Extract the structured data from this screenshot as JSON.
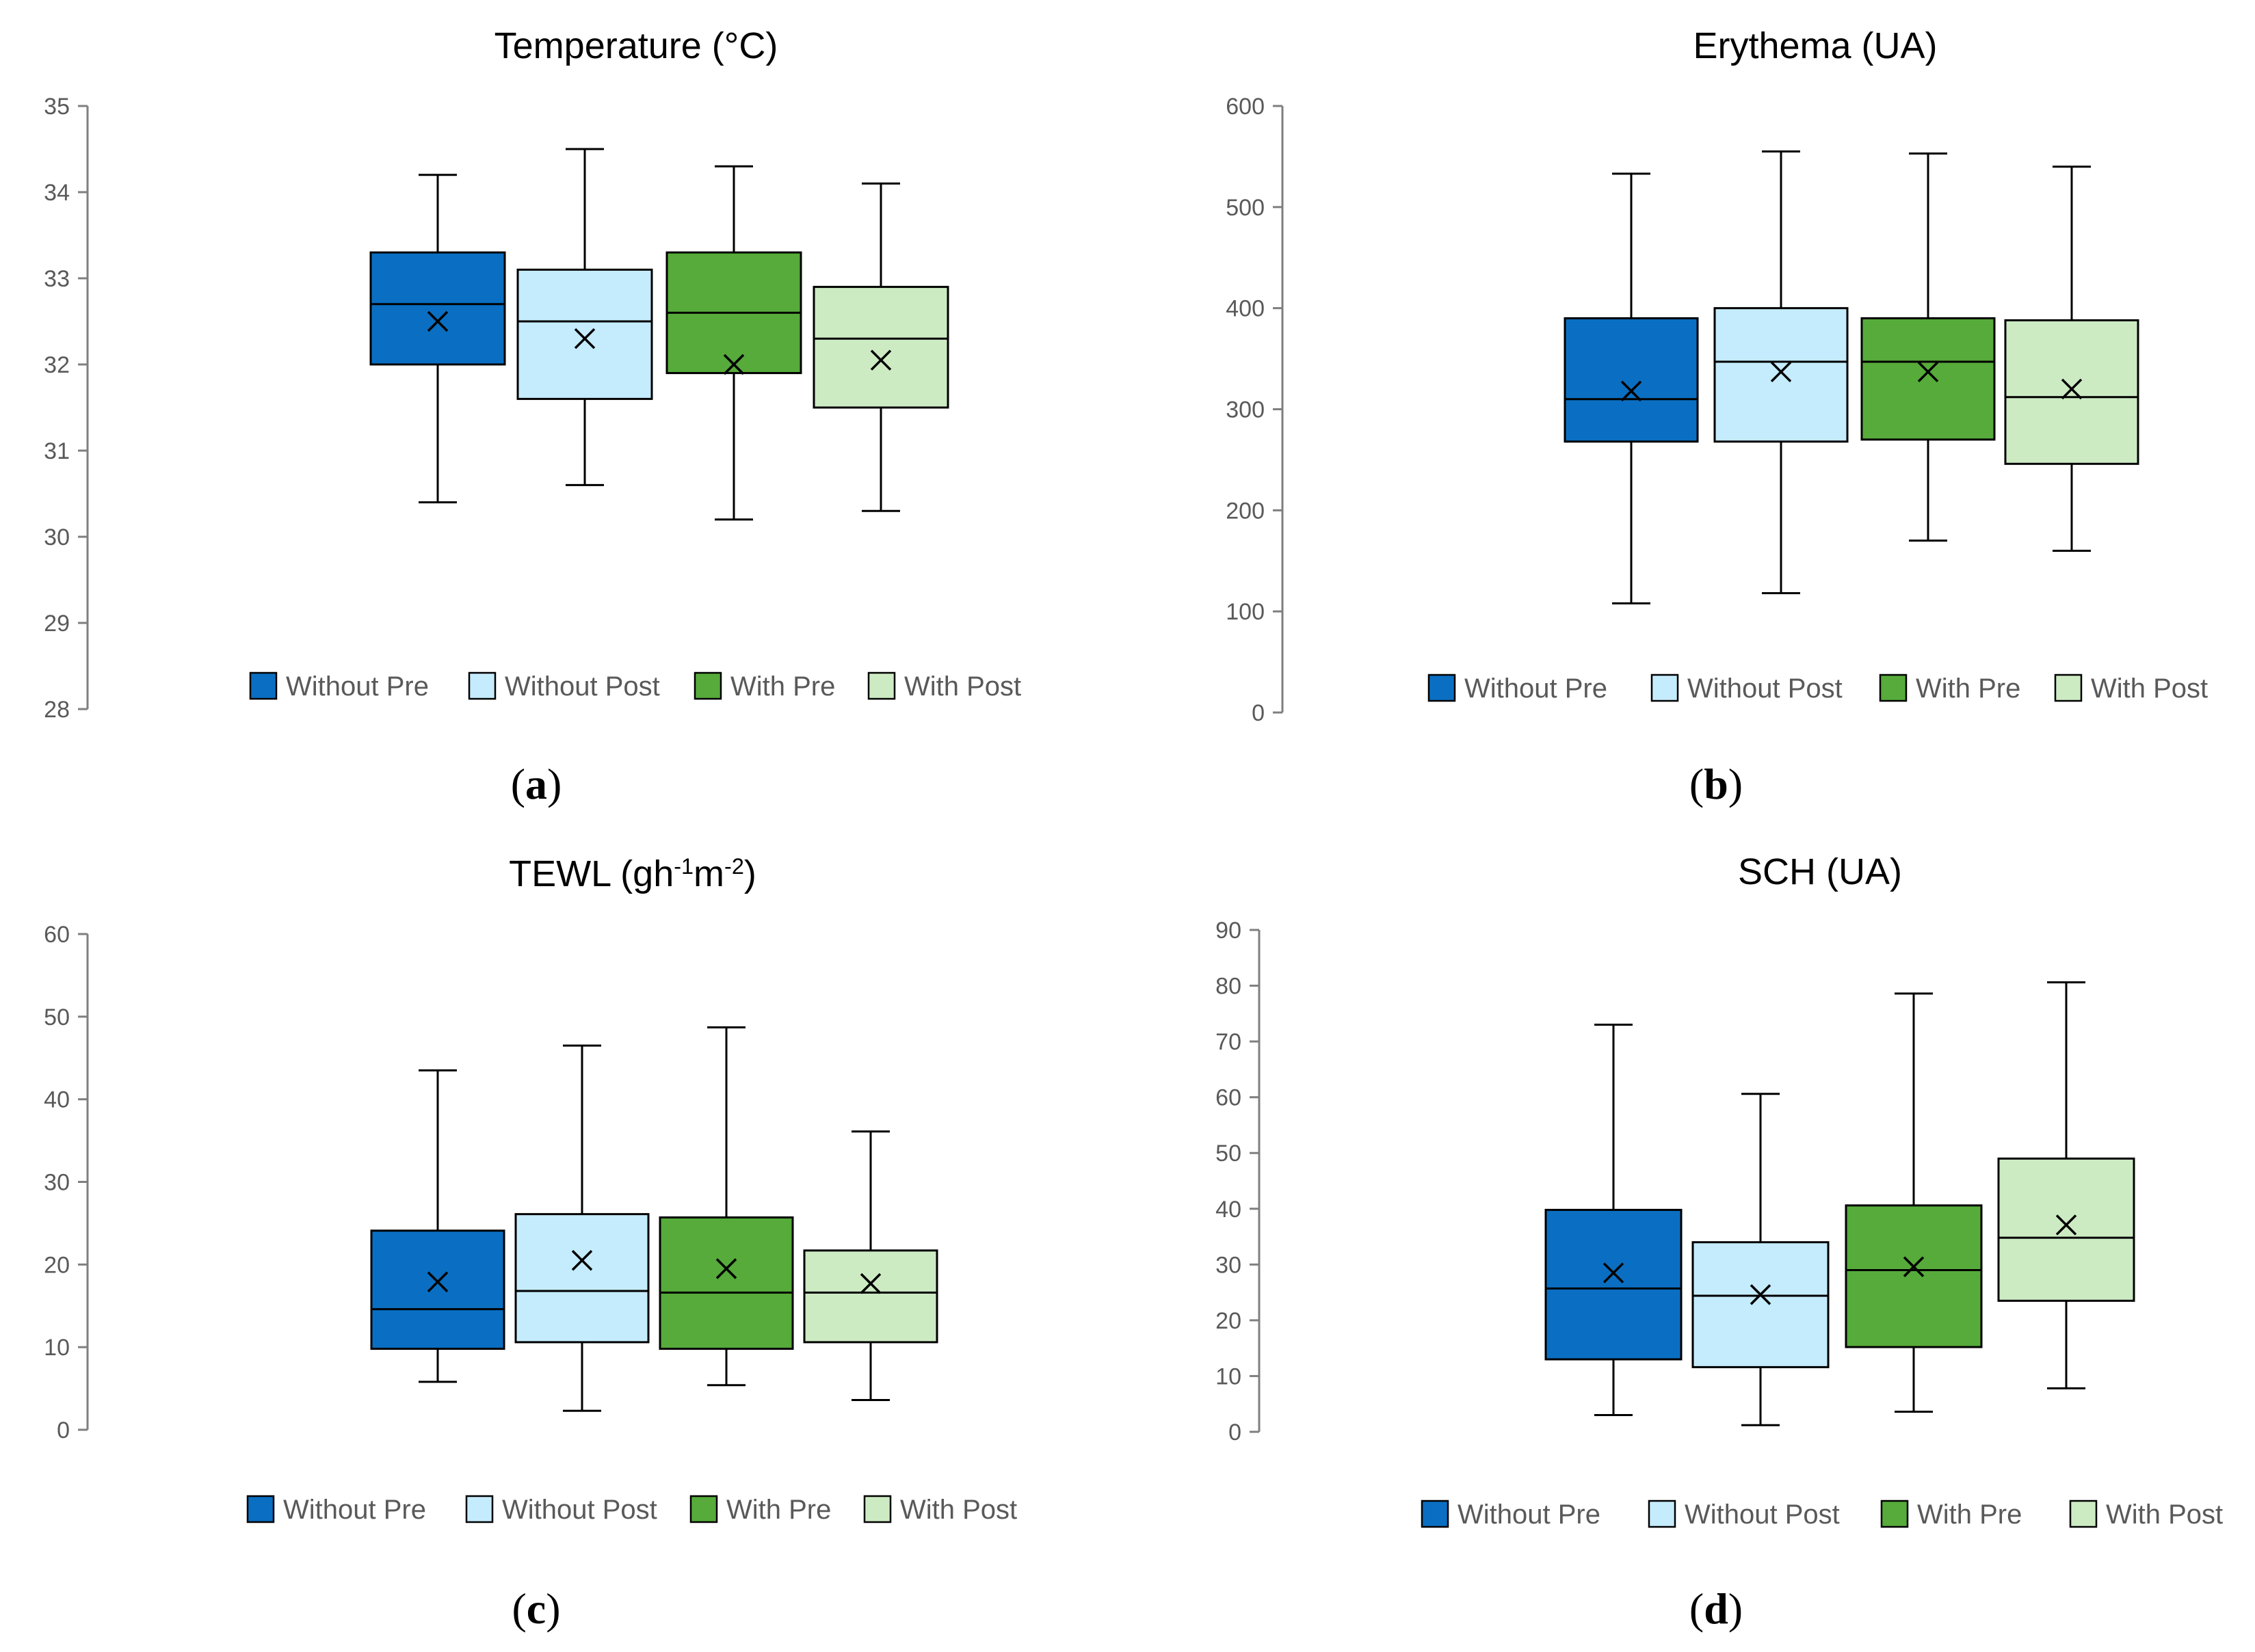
{
  "chart_data": [
    {
      "type": "box",
      "title": "Temperature (°C)",
      "title_parts": [
        {
          "t": "Temperature (°C)"
        }
      ],
      "caption_open": "(",
      "caption_letter": "a",
      "caption_close": ")",
      "ylim": [
        28,
        35
      ],
      "yticks": [
        28,
        29,
        30,
        31,
        32,
        33,
        34,
        35
      ],
      "grid": false,
      "legend_position": "bottom",
      "series": [
        {
          "name": "Without Pre",
          "color": "#0a6fc2",
          "min": 30.4,
          "q1": 32.0,
          "median": 32.7,
          "q3": 33.3,
          "max": 34.2,
          "mean": 32.5
        },
        {
          "name": "Without Post",
          "color": "#c5ecfd",
          "min": 30.6,
          "q1": 31.6,
          "median": 32.5,
          "q3": 33.1,
          "max": 34.5,
          "mean": 32.3
        },
        {
          "name": "With Pre",
          "color": "#56ab3a",
          "min": 30.2,
          "q1": 31.9,
          "median": 32.6,
          "q3": 33.3,
          "max": 34.3,
          "mean": 32.0
        },
        {
          "name": "With Post",
          "color": "#cdebc3",
          "min": 30.3,
          "q1": 31.5,
          "median": 32.3,
          "q3": 32.9,
          "max": 34.1,
          "mean": 32.05
        }
      ]
    },
    {
      "type": "box",
      "title": "Erythema (UA)",
      "title_parts": [
        {
          "t": "Erythema (UA)"
        }
      ],
      "caption_open": "(",
      "caption_letter": "b",
      "caption_close": ")",
      "ylim": [
        0,
        600
      ],
      "yticks": [
        0,
        100,
        200,
        300,
        400,
        500,
        600
      ],
      "grid": false,
      "legend_position": "bottom",
      "series": [
        {
          "name": "Without Pre",
          "color": "#0a6fc2",
          "min": 108,
          "q1": 268,
          "median": 310,
          "q3": 390,
          "max": 533,
          "mean": 318
        },
        {
          "name": "Without Post",
          "color": "#c5ecfd",
          "min": 118,
          "q1": 268,
          "median": 347,
          "q3": 400,
          "max": 555,
          "mean": 337
        },
        {
          "name": "With Pre",
          "color": "#56ab3a",
          "min": 170,
          "q1": 270,
          "median": 347,
          "q3": 390,
          "max": 553,
          "mean": 337
        },
        {
          "name": "With Post",
          "color": "#cdebc3",
          "min": 160,
          "q1": 246,
          "median": 312,
          "q3": 388,
          "max": 540,
          "mean": 320
        }
      ]
    },
    {
      "type": "box",
      "title": "TEWL (gh-1m-2)",
      "title_parts": [
        {
          "t": "TEWL (gh"
        },
        {
          "t": "-1",
          "sup": true
        },
        {
          "t": "m"
        },
        {
          "t": "-2",
          "sup": true
        },
        {
          "t": ")"
        }
      ],
      "caption_open": "(",
      "caption_letter": "c",
      "caption_close": ")",
      "ylim": [
        0,
        60
      ],
      "yticks": [
        0,
        10,
        20,
        30,
        40,
        50,
        60
      ],
      "grid": false,
      "legend_position": "bottom",
      "series": [
        {
          "name": "Without Pre",
          "color": "#0a6fc2",
          "min": 5.8,
          "q1": 9.8,
          "median": 14.6,
          "q3": 24.1,
          "max": 43.5,
          "mean": 17.9
        },
        {
          "name": "Without Post",
          "color": "#c5ecfd",
          "min": 2.3,
          "q1": 10.6,
          "median": 16.8,
          "q3": 26.1,
          "max": 46.5,
          "mean": 20.5
        },
        {
          "name": "With Pre",
          "color": "#56ab3a",
          "min": 5.4,
          "q1": 9.8,
          "median": 16.6,
          "q3": 25.7,
          "max": 48.7,
          "mean": 19.5
        },
        {
          "name": "With Post",
          "color": "#cdebc3",
          "min": 3.6,
          "q1": 10.6,
          "median": 16.6,
          "q3": 21.7,
          "max": 36.1,
          "mean": 17.7
        }
      ]
    },
    {
      "type": "box",
      "title": "SCH (UA)",
      "title_parts": [
        {
          "t": "SCH (UA)"
        }
      ],
      "caption_open": "(",
      "caption_letter": "d",
      "caption_close": ")",
      "ylim": [
        0,
        90
      ],
      "yticks": [
        0,
        10,
        20,
        30,
        40,
        50,
        60,
        70,
        80,
        90
      ],
      "grid": false,
      "legend_position": "bottom",
      "series": [
        {
          "name": "Without Pre",
          "color": "#0a6fc2",
          "min": 3.0,
          "q1": 13.0,
          "median": 25.7,
          "q3": 39.8,
          "max": 73.0,
          "mean": 28.5
        },
        {
          "name": "Without Post",
          "color": "#c5ecfd",
          "min": 1.2,
          "q1": 11.6,
          "median": 24.4,
          "q3": 34.0,
          "max": 60.6,
          "mean": 24.6
        },
        {
          "name": "With Pre",
          "color": "#56ab3a",
          "min": 3.6,
          "q1": 15.2,
          "median": 29.0,
          "q3": 40.6,
          "max": 78.6,
          "mean": 29.6
        },
        {
          "name": "With Post",
          "color": "#cdebc3",
          "min": 7.8,
          "q1": 23.5,
          "median": 34.8,
          "q3": 49.0,
          "max": 80.6,
          "mean": 37.1
        }
      ]
    }
  ]
}
